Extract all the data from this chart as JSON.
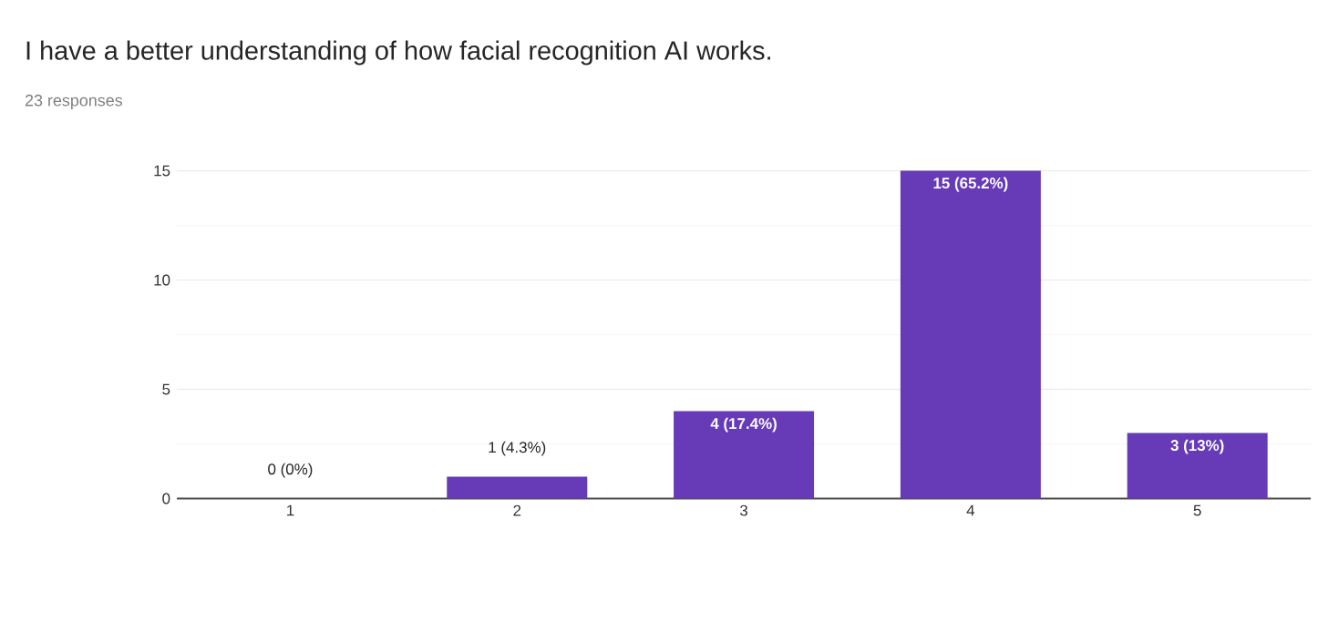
{
  "chart_data": {
    "type": "bar",
    "title": "I have a better understanding of how facial recognition AI works.",
    "subtitle": "23 responses",
    "categories": [
      "1",
      "2",
      "3",
      "4",
      "5"
    ],
    "values": [
      0,
      1,
      4,
      15,
      3
    ],
    "value_labels": [
      "0 (0%)",
      "1 (4.3%)",
      "4 (17.4%)",
      "15 (65.2%)",
      "3 (13%)"
    ],
    "color": "#673ab7",
    "ylim": [
      0,
      15
    ],
    "yticks": [
      0,
      5,
      10,
      15
    ],
    "grid": "y"
  }
}
